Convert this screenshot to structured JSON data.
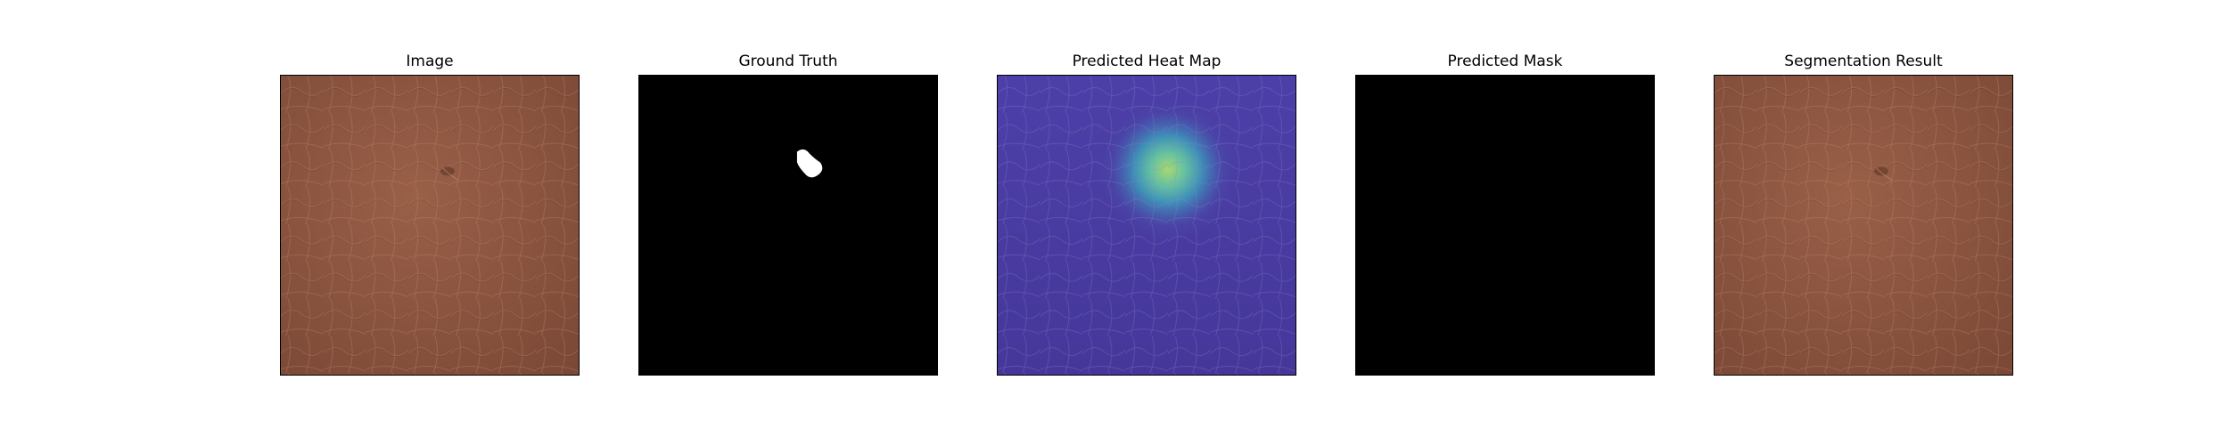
{
  "panels": [
    {
      "title": "Image"
    },
    {
      "title": "Ground Truth"
    },
    {
      "title": "Predicted Heat Map"
    },
    {
      "title": "Predicted Mask"
    },
    {
      "title": "Segmentation Result"
    }
  ],
  "colors": {
    "leather": "#8a5540",
    "mask_background": "#000000",
    "mask_foreground": "#ffffff",
    "heatmap_base": "#4a3aa0",
    "heatmap_hot": "#8fd17a"
  },
  "icons": {
    "leather": "leather-texture-image",
    "ground_truth": "binary-mask-image",
    "heatmap": "anomaly-heatmap-image",
    "predicted_mask": "empty-mask-image",
    "segmentation": "segmentation-overlay-image"
  }
}
